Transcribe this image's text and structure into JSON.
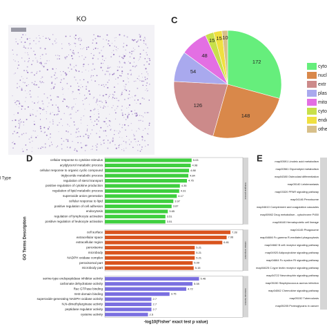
{
  "panel_ko": {
    "title": "KO"
  },
  "panel_c": {
    "label": "C"
  },
  "panel_d": {
    "label": "D"
  },
  "side_text": "l Type",
  "panel_e": {
    "label": "E",
    "items": [
      "map00591 Linoleic acid metabolism",
      "map00561 Glycerolipid metabolism",
      "map04380 Osteoclast differentiation",
      "map05140 Leishmaniasis",
      "map03320 PPAR signaling pathway",
      "map04146 Peroxisome",
      "map04610 Complement and coagulation cascades",
      "map00982 Drug metabolism - cytochrome P450",
      "map04640 Hematopoietic cell lineage",
      "map04145 Phagosome",
      "map04666 Fc gamma R-mediated phagocytosis",
      "map04662 B cell receptor signaling pathway",
      "map04920 Adipocytokine signaling pathway",
      "map04664 Fc epsilon RI signaling pathway",
      "map04625 C-type lectin receptor signaling pathway",
      "map04722 Neurotrophin signaling pathway",
      "map05150 Staphylococcus aureus infection",
      "map04062 Chemokine signaling pathway",
      "map05152 Tuberculosis",
      "map05205 Proteoglycans in cancer"
    ]
  },
  "chart_data": [
    {
      "type": "pie",
      "categories": [
        "cyto",
        "nucl",
        "extr",
        "plas",
        "mito",
        "cyto",
        "endo",
        "othe"
      ],
      "values": [
        172,
        148,
        126,
        54,
        48,
        15,
        15,
        10
      ],
      "colors": [
        "#66ee7c",
        "#d9884a",
        "#cc8a8a",
        "#a9a9ee",
        "#e36fe3",
        "#c8e04a",
        "#f0e040",
        "#d8c08a"
      ]
    },
    {
      "type": "bar",
      "orientation": "horizontal",
      "xlabel": "-log10(Fisher' exact test p value)",
      "ylabel": "GO Terms Description",
      "xlim": [
        0,
        10
      ],
      "groups": [
        {
          "name": "biological process",
          "color": "#3fcf3f",
          "categories": [
            "cellular response to cytokine stimulus",
            "acylglycerol metabolic process",
            "cellular response to organic cyclic compound",
            "triglyceride metabolic process",
            "regulation of sterol transport",
            "positive regulation of cytokine production",
            "regulation of lipid metabolic process",
            "superoxide anion generation",
            "cellular response to lipid",
            "positive regulation of cell adhesion",
            "endocytosis",
            "regulation of lymphocyte activation",
            "positive regulation of leukocyte activation"
          ],
          "values": [
            5.03,
            4.98,
            4.88,
            4.84,
            4.76,
            4.35,
            4.31,
            4.17,
            3.97,
            3.87,
            3.65,
            3.51,
            3.51
          ]
        },
        {
          "name": "cellular component",
          "color": "#d9541e",
          "categories": [
            "cell surface",
            "extracellular space",
            "extracellular region",
            "peroxisome",
            "microbody",
            "NADPH oxidase complex",
            "peroxisomal part",
            "microbody part"
          ],
          "values": [
            7.28,
            7.06,
            6.81,
            5.21,
            5.21,
            5.21,
            5.09,
            5.15
          ]
        },
        {
          "name": "molecular function",
          "color": "#7a6fe0",
          "categories": [
            "serine-type endopeptidase inhibitor activity",
            "carbonate dehydratase activity",
            "Rac GTPase binding",
            "SH3 domain binding",
            "superoxide-generating NADPH oxidase activity",
            "N,N-dimethylarginase activity",
            "peptidase regulator activity",
            "cysteine activity"
          ],
          "values": [
            5.46,
            5.08,
            4.72,
            3.75,
            2.7,
            2.7,
            2.7,
            2.5
          ]
        }
      ]
    }
  ]
}
